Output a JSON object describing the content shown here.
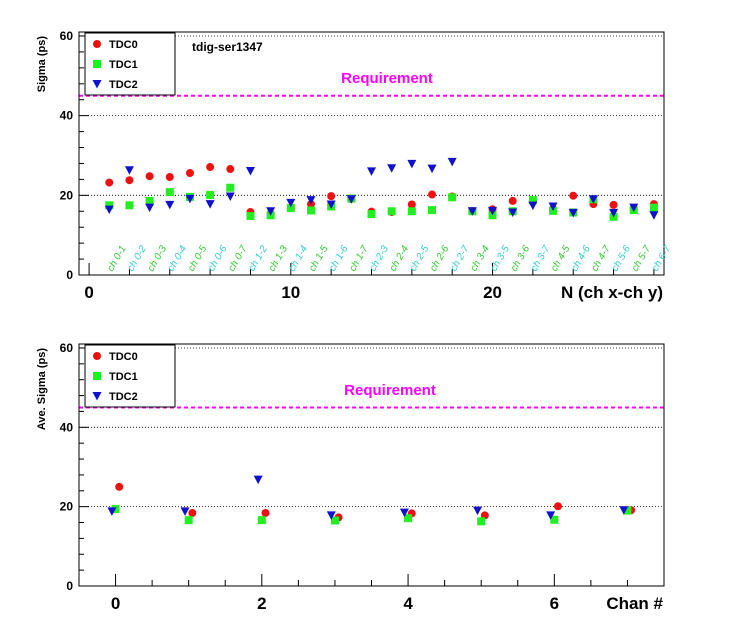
{
  "chart_data": [
    {
      "type": "scatter",
      "title": "tdig-ser1347",
      "xlabel": "N (ch x-ch y)",
      "ylabel": "Sigma (ps)",
      "xlim": [
        -0.5,
        28.5
      ],
      "ylim": [
        0,
        61
      ],
      "xticks": [
        "0",
        "10",
        "20"
      ],
      "xtick_values": [
        0,
        10,
        20
      ],
      "yticks": [
        "0",
        "20",
        "40",
        "60"
      ],
      "ytick_values": [
        0,
        20,
        40,
        60
      ],
      "grid": "horizontal-dotted",
      "legend_position": "top-left",
      "requirement": {
        "label": "Requirement",
        "value": 45,
        "color": "#ff00ff"
      },
      "category_labels": [
        "ch 0-1",
        "ch 0-2",
        "ch 0-3",
        "ch 0-4",
        "ch 0-5",
        "ch 0-6",
        "ch 0-7",
        "ch 1-2",
        "ch 1-3",
        "ch 1-4",
        "ch 1-5",
        "ch 1-6",
        "ch 1-7",
        "ch 2-3",
        "ch 2-4",
        "ch 2-5",
        "ch 2-6",
        "ch 2-7",
        "ch 3-4",
        "ch 3-5",
        "ch 3-6",
        "ch 3-7",
        "ch 4-5",
        "ch 4-6",
        "ch 4-7",
        "ch 5-6",
        "ch 5-7",
        "ch 6-7"
      ],
      "category_colors": [
        "#33cc33",
        "#33cccc",
        "#33cc33",
        "#33cccc",
        "#33cc33",
        "#33cccc",
        "#33cc33",
        "#33cccc",
        "#33cc33",
        "#33cccc",
        "#33cc33",
        "#33cccc",
        "#33cc33",
        "#33cccc",
        "#33cc33",
        "#33cccc",
        "#33cc33",
        "#33cccc",
        "#33cc33",
        "#33cccc",
        "#33cc33",
        "#33cccc",
        "#33cc33",
        "#33cccc",
        "#33cc33",
        "#33cccc",
        "#33cc33",
        "#33cccc"
      ],
      "series": [
        {
          "name": "TDC0",
          "marker": "circle",
          "color": "#ee1111",
          "x": [
            1,
            2,
            3,
            4,
            5,
            6,
            7,
            8,
            9,
            10,
            11,
            12,
            13,
            14,
            15,
            16,
            17,
            18,
            19,
            20,
            21,
            22,
            23,
            24,
            25,
            26,
            27,
            28
          ],
          "values": [
            23.2,
            23.8,
            24.8,
            24.6,
            25.6,
            27.1,
            26.6,
            15.8,
            15.4,
            16.8,
            17.8,
            19.8,
            19.1,
            15.9,
            15.8,
            17.7,
            20.2,
            19.7,
            16.1,
            16.5,
            18.6,
            18.6,
            16.6,
            19.9,
            17.8,
            17.6,
            16.5,
            17.8
          ]
        },
        {
          "name": "TDC1",
          "marker": "square",
          "color": "#22ee22",
          "x": [
            1,
            2,
            3,
            4,
            5,
            6,
            7,
            8,
            9,
            10,
            11,
            12,
            13,
            14,
            15,
            16,
            17,
            18,
            19,
            20,
            21,
            22,
            23,
            24,
            25,
            26,
            27,
            28
          ],
          "values": [
            17.5,
            17.5,
            18.6,
            20.8,
            19.6,
            20.1,
            21.9,
            14.8,
            15.0,
            16.8,
            16.2,
            17.2,
            19.2,
            15.3,
            16.0,
            16.0,
            16.3,
            19.5,
            16.0,
            15.0,
            16.0,
            18.8,
            16.1,
            15.7,
            19.0,
            14.6,
            16.3,
            16.9
          ]
        },
        {
          "name": "TDC2",
          "marker": "triangle-down",
          "color": "#1111cc",
          "x": [
            1,
            2,
            3,
            4,
            5,
            6,
            7,
            8,
            9,
            10,
            11,
            12,
            13,
            14,
            15,
            16,
            17,
            18,
            19,
            20,
            21,
            22,
            23,
            24,
            25,
            26,
            27,
            28
          ],
          "values": [
            16.4,
            26.3,
            16.9,
            17.6,
            19.1,
            17.8,
            19.7,
            26.1,
            16.0,
            18.1,
            18.8,
            17.7,
            19.0,
            26.0,
            26.8,
            27.9,
            26.7,
            28.4,
            16.0,
            16.1,
            15.7,
            17.4,
            17.2,
            15.6,
            19.0,
            15.6,
            16.9,
            15.0
          ]
        }
      ]
    },
    {
      "type": "scatter",
      "xlabel": "Chan #",
      "ylabel": "Ave. Sigma (ps)",
      "xlim": [
        -0.5,
        7.5
      ],
      "ylim": [
        0,
        61
      ],
      "xticks": [
        "0",
        "2",
        "4",
        "6"
      ],
      "xtick_values": [
        0,
        2,
        4,
        6
      ],
      "yticks": [
        "0",
        "20",
        "40",
        "60"
      ],
      "ytick_values": [
        0,
        20,
        40,
        60
      ],
      "grid": "horizontal-dotted",
      "legend_position": "top-left",
      "requirement": {
        "label": "Requirement",
        "value": 45,
        "color": "#ff00ff"
      },
      "series": [
        {
          "name": "TDC0",
          "marker": "circle",
          "color": "#ee1111",
          "x": [
            0,
            1,
            2,
            3,
            4,
            5,
            6,
            7
          ],
          "offset": 0.05,
          "values": [
            25.0,
            18.4,
            18.4,
            17.3,
            18.3,
            17.8,
            20.1,
            19.1
          ]
        },
        {
          "name": "TDC1",
          "marker": "square",
          "color": "#22ee22",
          "x": [
            0,
            1,
            2,
            3,
            4,
            5,
            6,
            7
          ],
          "offset": 0.0,
          "values": [
            19.4,
            16.6,
            16.6,
            16.5,
            17.1,
            16.3,
            16.7,
            19.0
          ]
        },
        {
          "name": "TDC2",
          "marker": "triangle-down",
          "color": "#1111cc",
          "x": [
            0,
            1,
            2,
            3,
            4,
            5,
            6,
            7
          ],
          "offset": -0.05,
          "values": [
            18.8,
            18.8,
            26.8,
            17.8,
            18.5,
            19.0,
            17.8,
            19.1
          ]
        }
      ]
    }
  ]
}
